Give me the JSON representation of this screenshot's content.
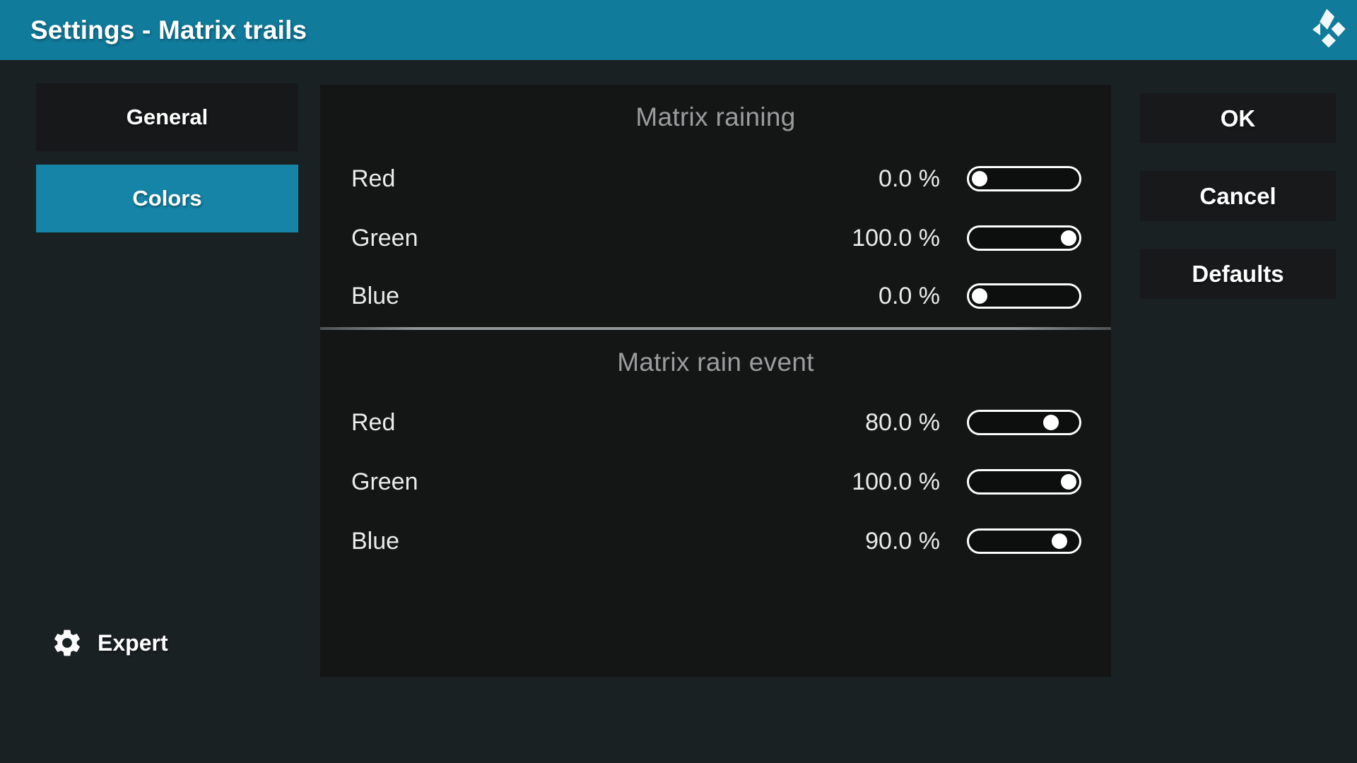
{
  "header": {
    "title": "Settings - Matrix trails",
    "logo_icon": "kodi-logo"
  },
  "sidebar": {
    "items": [
      {
        "label": "General",
        "selected": false
      },
      {
        "label": "Colors",
        "selected": true
      }
    ]
  },
  "panel": {
    "sections": [
      {
        "title": "Matrix raining",
        "settings": [
          {
            "label": "Red",
            "value": "0.0 %",
            "pct": 0
          },
          {
            "label": "Green",
            "value": "100.0 %",
            "pct": 100
          },
          {
            "label": "Blue",
            "value": "0.0 %",
            "pct": 0
          }
        ]
      },
      {
        "title": "Matrix rain event",
        "settings": [
          {
            "label": "Red",
            "value": "80.0 %",
            "pct": 80
          },
          {
            "label": "Green",
            "value": "100.0 %",
            "pct": 100
          },
          {
            "label": "Blue",
            "value": "90.0 %",
            "pct": 90
          }
        ]
      }
    ]
  },
  "actions": {
    "buttons": [
      {
        "label": "OK"
      },
      {
        "label": "Cancel"
      },
      {
        "label": "Defaults"
      }
    ]
  },
  "footer": {
    "level": "Expert",
    "icon": "gear-icon"
  },
  "colors": {
    "header_teal": "#117b9c",
    "selected_teal": "#1584a6",
    "page_bg": "#1a2123",
    "panel_bg": "#131615",
    "button_bg": "#17191b",
    "muted_text": "#9a9d9e",
    "divider": "#909698",
    "text": "#ffffff"
  }
}
